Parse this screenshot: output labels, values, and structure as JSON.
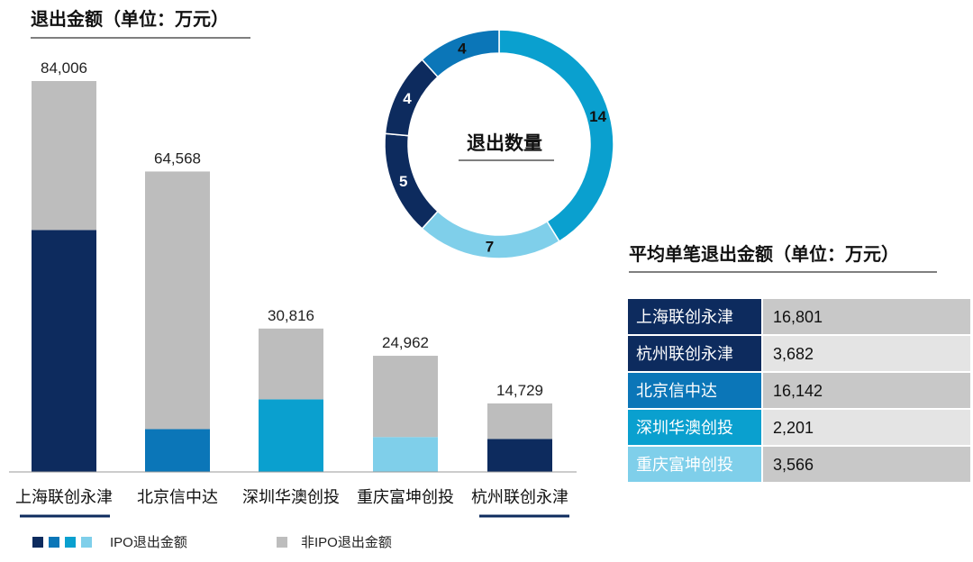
{
  "chart_data": [
    {
      "type": "bar",
      "title": "退出金额（单位：万元）",
      "categories": [
        "上海联创永津",
        "北京信中达",
        "深圳华澳创投",
        "重庆富坤创投",
        "杭州联创永津"
      ],
      "totals": [
        "84,006",
        "64,568",
        "30,816",
        "24,962",
        "14,729"
      ],
      "series": [
        {
          "name": "IPO退出金额",
          "values": [
            52000,
            9200,
            15600,
            7500,
            7100
          ]
        },
        {
          "name": "非IPO退出金额",
          "values": [
            32006,
            55368,
            15216,
            17462,
            7629
          ]
        }
      ],
      "ylim": [
        0,
        84006
      ],
      "ipo_colors": [
        "#0d2b5e",
        "#0b76b8",
        "#0aa0cf",
        "#7fcfea",
        "#0d2b5e"
      ],
      "non_ipo_color": "#bdbdbd",
      "legend": {
        "ipo_label": "IPO退出金额",
        "non_ipo_label": "非IPO退出金额",
        "ipo_swatches": [
          "#0d2b5e",
          "#0b76b8",
          "#0aa0cf",
          "#7fcfea"
        ],
        "non_ipo_swatch": "#bdbdbd",
        "placement": "bottom-left"
      }
    },
    {
      "type": "pie",
      "style": "donut",
      "title": "退出数量",
      "slices": [
        {
          "value": 14,
          "label": "14",
          "color": "#0aa0cf",
          "text_color": "#111111"
        },
        {
          "value": 7,
          "label": "7",
          "color": "#7fcfea",
          "text_color": "#111111"
        },
        {
          "value": 5,
          "label": "5",
          "color": "#0d2b5e",
          "text_color": "#ffffff"
        },
        {
          "value": 4,
          "label": "4",
          "color": "#0d2b5e",
          "text_color": "#ffffff"
        },
        {
          "value": 4,
          "label": "4",
          "color": "#0b76b8",
          "text_color": "#111111"
        }
      ]
    },
    {
      "type": "table",
      "title": "平均单笔退出金额（单位：万元）",
      "rows": [
        {
          "name": "上海联创永津",
          "value": "16,801",
          "color": "#0d2b5e",
          "value_bg": "#c8c8c8"
        },
        {
          "name": "杭州联创永津",
          "value": "3,682",
          "color": "#0d2b5e",
          "value_bg": "#e4e4e4"
        },
        {
          "name": "北京信中达",
          "value": "16,142",
          "color": "#0b76b8",
          "value_bg": "#c8c8c8"
        },
        {
          "name": "深圳华澳创投",
          "value": "2,201",
          "color": "#0aa0cf",
          "value_bg": "#e4e4e4"
        },
        {
          "name": "重庆富坤创投",
          "value": "3,566",
          "color": "#7fcfea",
          "value_bg": "#c8c8c8"
        }
      ]
    }
  ]
}
